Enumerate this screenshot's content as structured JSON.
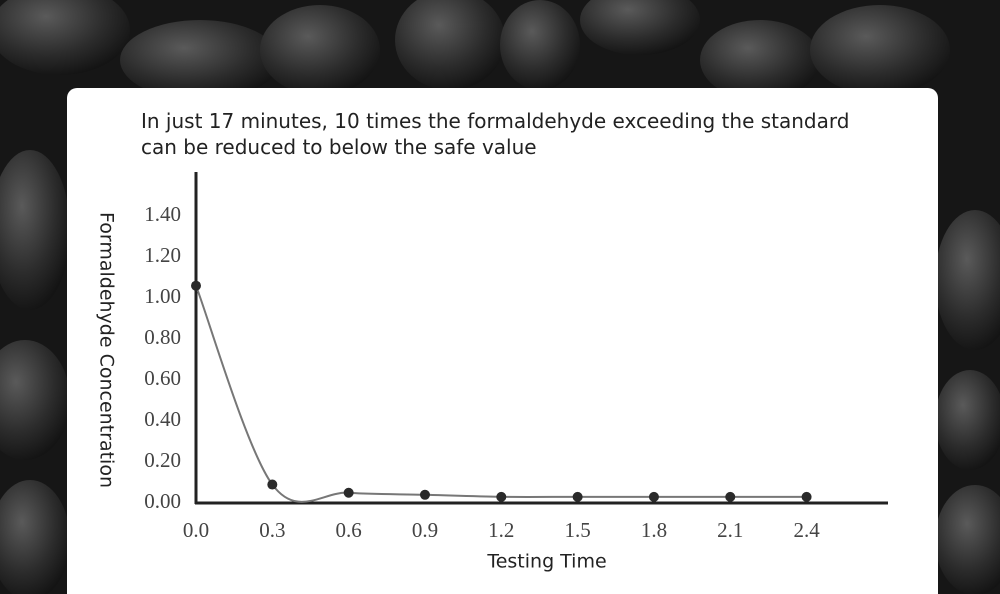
{
  "chart_data": {
    "type": "line",
    "title": "In just 17 minutes, 10 times the formaldehyde exceeding the standard can be reduced to below the safe value",
    "x_label": "Testing Time",
    "y_label": "Formaldehyde Concentration",
    "x": [
      0.0,
      0.3,
      0.6,
      0.9,
      1.2,
      1.5,
      1.8,
      2.1,
      2.4
    ],
    "series": [
      {
        "color": "#777777",
        "marker_color": "#2a2a2a",
        "values": [
          1.06,
          0.09,
          0.05,
          0.04,
          0.03,
          0.03,
          0.03,
          0.03,
          0.03
        ]
      }
    ],
    "xlim": [
      0,
      2.72
    ],
    "ylim": [
      0,
      1.6
    ],
    "xticks": [
      {
        "value": 0,
        "label": "0.0"
      },
      0.3,
      0.6,
      0.9,
      1.2,
      1.5,
      1.8,
      2.1,
      2.4
    ],
    "yticks": [
      {
        "value": 0,
        "label": "0.00"
      },
      {
        "value": 0.2,
        "label": "0.20"
      },
      {
        "value": 0.4,
        "label": "0.40"
      },
      {
        "value": 0.6,
        "label": "0.60"
      },
      {
        "value": 0.8,
        "label": "0.80"
      },
      {
        "value": 1.0,
        "label": "1.00"
      },
      {
        "value": 1.2,
        "label": "1.20"
      },
      {
        "value": 1.4,
        "label": "1.40"
      }
    ],
    "grid": false
  }
}
